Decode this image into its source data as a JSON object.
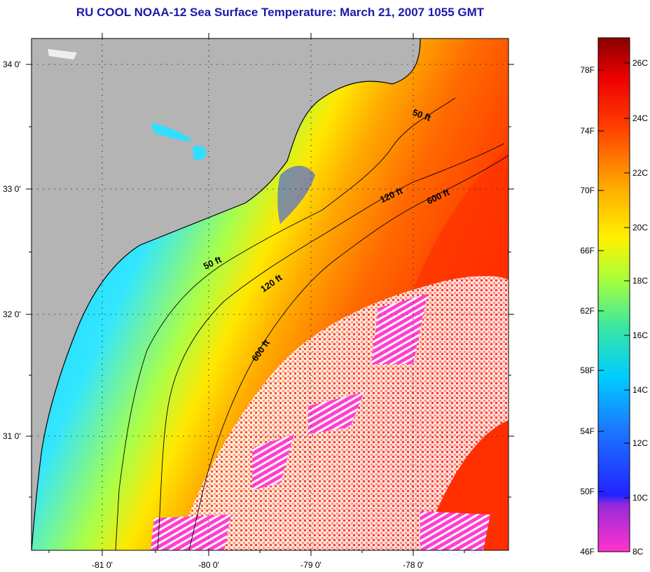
{
  "title": "RU COOL  NOAA-12  Sea Surface Temperature:  March 21, 2007 1055 GMT",
  "map": {
    "lat_ticks": [
      "34 0'",
      "33 0'",
      "32 0'",
      "31 0'"
    ],
    "lon_ticks": [
      "-81 0'",
      "-80 0'",
      "-79 0'",
      "-78 0'"
    ],
    "isobath_labels": [
      "50 ft",
      "120 ft",
      "600 ft",
      "50 ft",
      "120 ft",
      "600 ft"
    ]
  },
  "colorbar": {
    "f_labels": [
      "78F",
      "74F",
      "70F",
      "66F",
      "62F",
      "58F",
      "54F",
      "50F",
      "46F"
    ],
    "c_labels": [
      "26C",
      "24C",
      "22C",
      "20C",
      "18C",
      "16C",
      "14C",
      "12C",
      "10C",
      "8C"
    ]
  },
  "colors": {
    "land": "#b4b4b4",
    "title": "#1a1aa8",
    "cold": "#ff33cc",
    "warm": "#8b0000"
  }
}
